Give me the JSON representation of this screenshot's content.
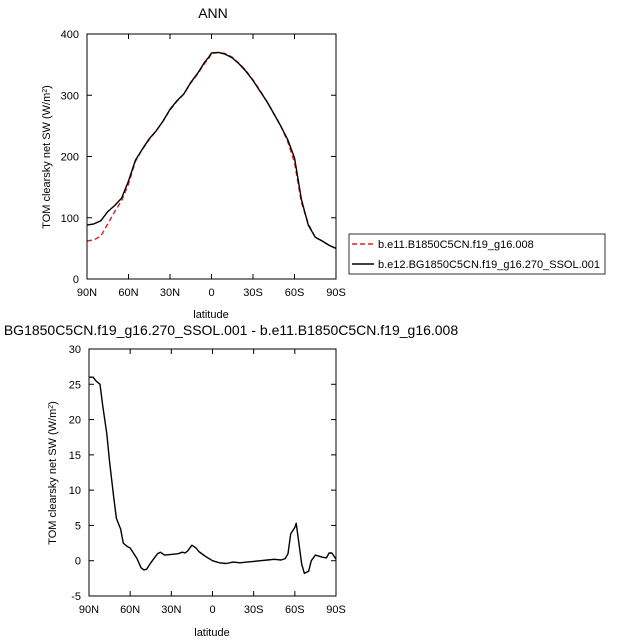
{
  "figure": {
    "top_title": "ANN",
    "bottom_title": "BG1850C5CN.f19_g16.270_SSOL.001 - b.e11.B1850C5CN.f19_g16.008"
  },
  "chart_data": [
    {
      "type": "line",
      "title": "ANN",
      "xlabel": "latitude",
      "ylabel_main": "TOM clearsky net SW (W/m",
      "ylabel_sup": "2",
      "ylabel_tail": ")",
      "x_ticks": [
        90,
        60,
        30,
        0,
        -30,
        -60,
        -90
      ],
      "x_tick_labels": [
        "90N",
        "60N",
        "30N",
        "0",
        "30S",
        "60S",
        "90S"
      ],
      "xlim": [
        90,
        -90
      ],
      "ylim": [
        0,
        400
      ],
      "y_ticks": [
        0,
        100,
        200,
        300,
        400
      ],
      "y_tick_labels": [
        "0",
        "100",
        "200",
        "300",
        "400"
      ],
      "legend_position": "right",
      "series": [
        {
          "name": "b.e11.B1850C5CN.f19_g16.008",
          "color": "#e02020",
          "dashed": true,
          "points": [
            [
              90,
              62
            ],
            [
              85,
              64
            ],
            [
              80,
              70
            ],
            [
              75,
              90
            ],
            [
              70,
              110
            ],
            [
              65,
              128
            ],
            [
              60,
              155
            ],
            [
              55,
              192
            ],
            [
              50,
              212
            ],
            [
              45,
              228
            ],
            [
              40,
              242
            ],
            [
              35,
              258
            ],
            [
              30,
              276
            ],
            [
              25,
              290
            ],
            [
              20,
              302
            ],
            [
              15,
              320
            ],
            [
              10,
              335
            ],
            [
              5,
              352
            ],
            [
              2,
              360
            ],
            [
              0,
              368
            ],
            [
              -5,
              370
            ],
            [
              -10,
              368
            ],
            [
              -15,
              362
            ],
            [
              -20,
              352
            ],
            [
              -25,
              340
            ],
            [
              -30,
              325
            ],
            [
              -35,
              308
            ],
            [
              -40,
              290
            ],
            [
              -45,
              270
            ],
            [
              -50,
              250
            ],
            [
              -55,
              225
            ],
            [
              -60,
              190
            ],
            [
              -65,
              125
            ],
            [
              -70,
              90
            ],
            [
              -75,
              68
            ],
            [
              -80,
              62
            ],
            [
              -85,
              55
            ],
            [
              -90,
              50
            ]
          ]
        },
        {
          "name": "b.e12.BG1850C5CN.f19_g16.270_SSOL.001",
          "color": "#000000",
          "dashed": false,
          "points": [
            [
              90,
              88
            ],
            [
              85,
              90
            ],
            [
              80,
              95
            ],
            [
              75,
              110
            ],
            [
              70,
              120
            ],
            [
              65,
              132
            ],
            [
              60,
              160
            ],
            [
              55,
              194
            ],
            [
              50,
              212
            ],
            [
              45,
              229
            ],
            [
              40,
              242
            ],
            [
              35,
              258
            ],
            [
              30,
              277
            ],
            [
              25,
              291
            ],
            [
              20,
              302
            ],
            [
              15,
              321
            ],
            [
              10,
              336
            ],
            [
              5,
              354
            ],
            [
              2,
              362
            ],
            [
              0,
              369
            ],
            [
              -5,
              370
            ],
            [
              -10,
              367
            ],
            [
              -15,
              361
            ],
            [
              -20,
              351
            ],
            [
              -25,
              339
            ],
            [
              -30,
              324
            ],
            [
              -35,
              307
            ],
            [
              -40,
              290
            ],
            [
              -45,
              270
            ],
            [
              -50,
              250
            ],
            [
              -55,
              228
            ],
            [
              -60,
              198
            ],
            [
              -65,
              130
            ],
            [
              -70,
              88
            ],
            [
              -75,
              68
            ],
            [
              -80,
              62
            ],
            [
              -85,
              55
            ],
            [
              -90,
              50
            ]
          ]
        }
      ]
    },
    {
      "type": "line",
      "title": "BG1850C5CN.f19_g16.270_SSOL.001 - b.e11.B1850C5CN.f19_g16.008",
      "xlabel": "latitude",
      "ylabel_main": "TOM clearsky net SW (W/m",
      "ylabel_sup": "2",
      "ylabel_tail": ")",
      "x_ticks": [
        90,
        60,
        30,
        0,
        -30,
        -60,
        -90
      ],
      "x_tick_labels": [
        "90N",
        "60N",
        "30N",
        "0",
        "30S",
        "60S",
        "90S"
      ],
      "xlim": [
        90,
        -90
      ],
      "ylim": [
        -5,
        30
      ],
      "y_ticks": [
        -5,
        0,
        5,
        10,
        15,
        20,
        25,
        30
      ],
      "y_tick_labels": [
        "-5",
        "0",
        "5",
        "10",
        "15",
        "20",
        "25",
        "30"
      ],
      "series": [
        {
          "color": "#000000",
          "dashed": false,
          "points": [
            [
              90,
              26
            ],
            [
              87,
              26
            ],
            [
              85,
              25.5
            ],
            [
              82,
              25
            ],
            [
              80,
              22
            ],
            [
              77,
              18
            ],
            [
              75,
              14
            ],
            [
              72,
              9
            ],
            [
              70,
              6
            ],
            [
              67,
              4.5
            ],
            [
              65,
              2.5
            ],
            [
              62,
              2
            ],
            [
              60,
              1.8
            ],
            [
              55,
              0.3
            ],
            [
              52,
              -1
            ],
            [
              50,
              -1.3
            ],
            [
              48,
              -1.2
            ],
            [
              45,
              -0.3
            ],
            [
              42,
              0.5
            ],
            [
              40,
              1
            ],
            [
              38,
              1.2
            ],
            [
              35,
              0.8
            ],
            [
              30,
              0.9
            ],
            [
              25,
              1
            ],
            [
              22,
              1.2
            ],
            [
              20,
              1.1
            ],
            [
              18,
              1.4
            ],
            [
              15,
              2.2
            ],
            [
              12,
              1.8
            ],
            [
              10,
              1.3
            ],
            [
              5,
              0.6
            ],
            [
              0,
              0
            ],
            [
              -5,
              -0.3
            ],
            [
              -10,
              -0.4
            ],
            [
              -15,
              -0.2
            ],
            [
              -20,
              -0.3
            ],
            [
              -25,
              -0.2
            ],
            [
              -30,
              -0.1
            ],
            [
              -35,
              0
            ],
            [
              -40,
              0.1
            ],
            [
              -45,
              0.2
            ],
            [
              -50,
              0.1
            ],
            [
              -53,
              0.3
            ],
            [
              -55,
              1
            ],
            [
              -57,
              3.8
            ],
            [
              -60,
              4.7
            ],
            [
              -61,
              5.3
            ],
            [
              -63,
              2.5
            ],
            [
              -65,
              -0.5
            ],
            [
              -67,
              -1.8
            ],
            [
              -70,
              -1.5
            ],
            [
              -72,
              0
            ],
            [
              -75,
              0.8
            ],
            [
              -80,
              0.5
            ],
            [
              -83,
              0.4
            ],
            [
              -85,
              1.1
            ],
            [
              -87,
              1.1
            ],
            [
              -90,
              0.2
            ]
          ]
        }
      ]
    }
  ]
}
